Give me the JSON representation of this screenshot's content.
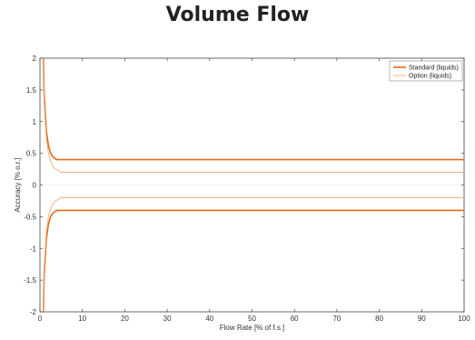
{
  "chart_data": {
    "type": "line",
    "title": "Volume Flow",
    "xlabel": "Flow Rate [% of f.s.]",
    "ylabel": "Accuracy [% o.r.]",
    "xlim": [
      0,
      100
    ],
    "ylim": [
      -2,
      2
    ],
    "xticks": [
      0,
      10,
      20,
      30,
      40,
      50,
      60,
      70,
      80,
      90,
      100
    ],
    "yticks": [
      -2,
      -1.5,
      -1,
      -0.5,
      0,
      0.5,
      1,
      1.5,
      2
    ],
    "grid": false,
    "legend_position": "top-right",
    "series": [
      {
        "name": "Standard (liquids)",
        "color": "#e36c1a",
        "x": [
          0.8,
          1,
          1.5,
          2,
          2.5,
          3,
          3.5,
          4,
          100
        ],
        "y_upper": [
          2,
          1.4,
          0.85,
          0.62,
          0.5,
          0.45,
          0.42,
          0.4,
          0.4
        ],
        "y_lower": [
          -2,
          -1.4,
          -0.85,
          -0.62,
          -0.5,
          -0.45,
          -0.42,
          -0.4,
          -0.4
        ]
      },
      {
        "name": "Option (liquids)",
        "color": "#f2a66e",
        "x": [
          0.8,
          1,
          1.5,
          2,
          2.5,
          3,
          3.5,
          4,
          5,
          100
        ],
        "y_upper": [
          2,
          1.3,
          0.75,
          0.5,
          0.38,
          0.3,
          0.26,
          0.24,
          0.2,
          0.2
        ],
        "y_lower": [
          -2,
          -1.3,
          -0.75,
          -0.5,
          -0.38,
          -0.3,
          -0.26,
          -0.24,
          -0.2,
          -0.2
        ]
      }
    ]
  }
}
